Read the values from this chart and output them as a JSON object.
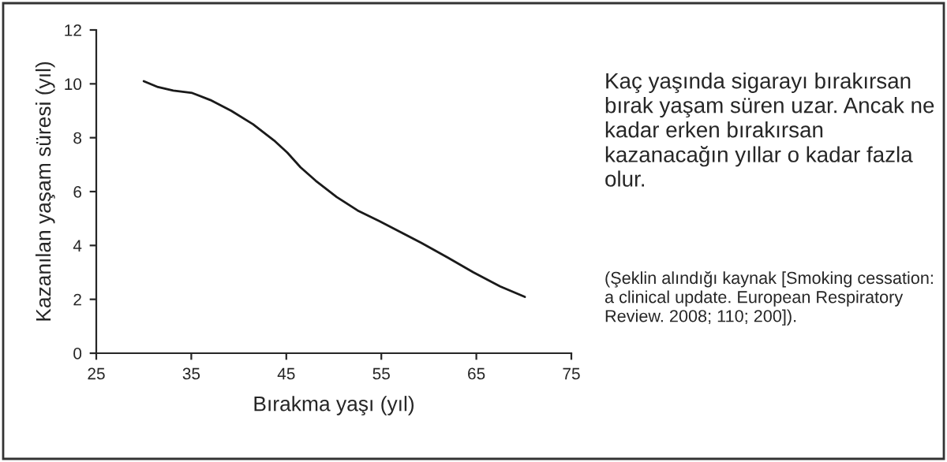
{
  "chart_data": {
    "type": "line",
    "xlabel": "Bırakma yaşı (yıl)",
    "ylabel": "Kazanılan yaşam süresi (yıl)",
    "annotations": [
      "Kaç yaşında sigarayı bırakırsan bırak yaşam süren uzar. Ancak ne kadar erken bırakırsan kazanacağın yıllar o kadar fazla olur.",
      "(Şeklin alındığı kaynak [Smoking cessation: a clinical update. European Respiratory Review. 2008; 110; 200])."
    ],
    "series": [
      {
        "color": "#1a1a1a",
        "x": [
          30,
          31.5,
          33.1,
          35.1,
          37.0,
          39.2,
          41.5,
          43.7,
          45.1,
          46.5,
          48.1,
          50.3,
          52.5,
          54.8,
          57.0,
          59.2,
          62.0,
          64.7,
          67.5,
          70.1
        ],
        "values": [
          10.1,
          9.88,
          9.75,
          9.66,
          9.4,
          9.0,
          8.5,
          7.9,
          7.45,
          6.9,
          6.4,
          5.8,
          5.3,
          4.9,
          4.5,
          4.1,
          3.55,
          3.0,
          2.48,
          2.09
        ]
      }
    ],
    "xlim": [
      25,
      75
    ],
    "xticks": [
      25,
      35,
      45,
      55,
      65,
      75
    ],
    "ylim": [
      0,
      12
    ],
    "yticks": [
      0,
      2,
      4,
      6,
      8,
      10,
      12
    ],
    "grid": false,
    "marker": "none",
    "line_style": "solid"
  }
}
